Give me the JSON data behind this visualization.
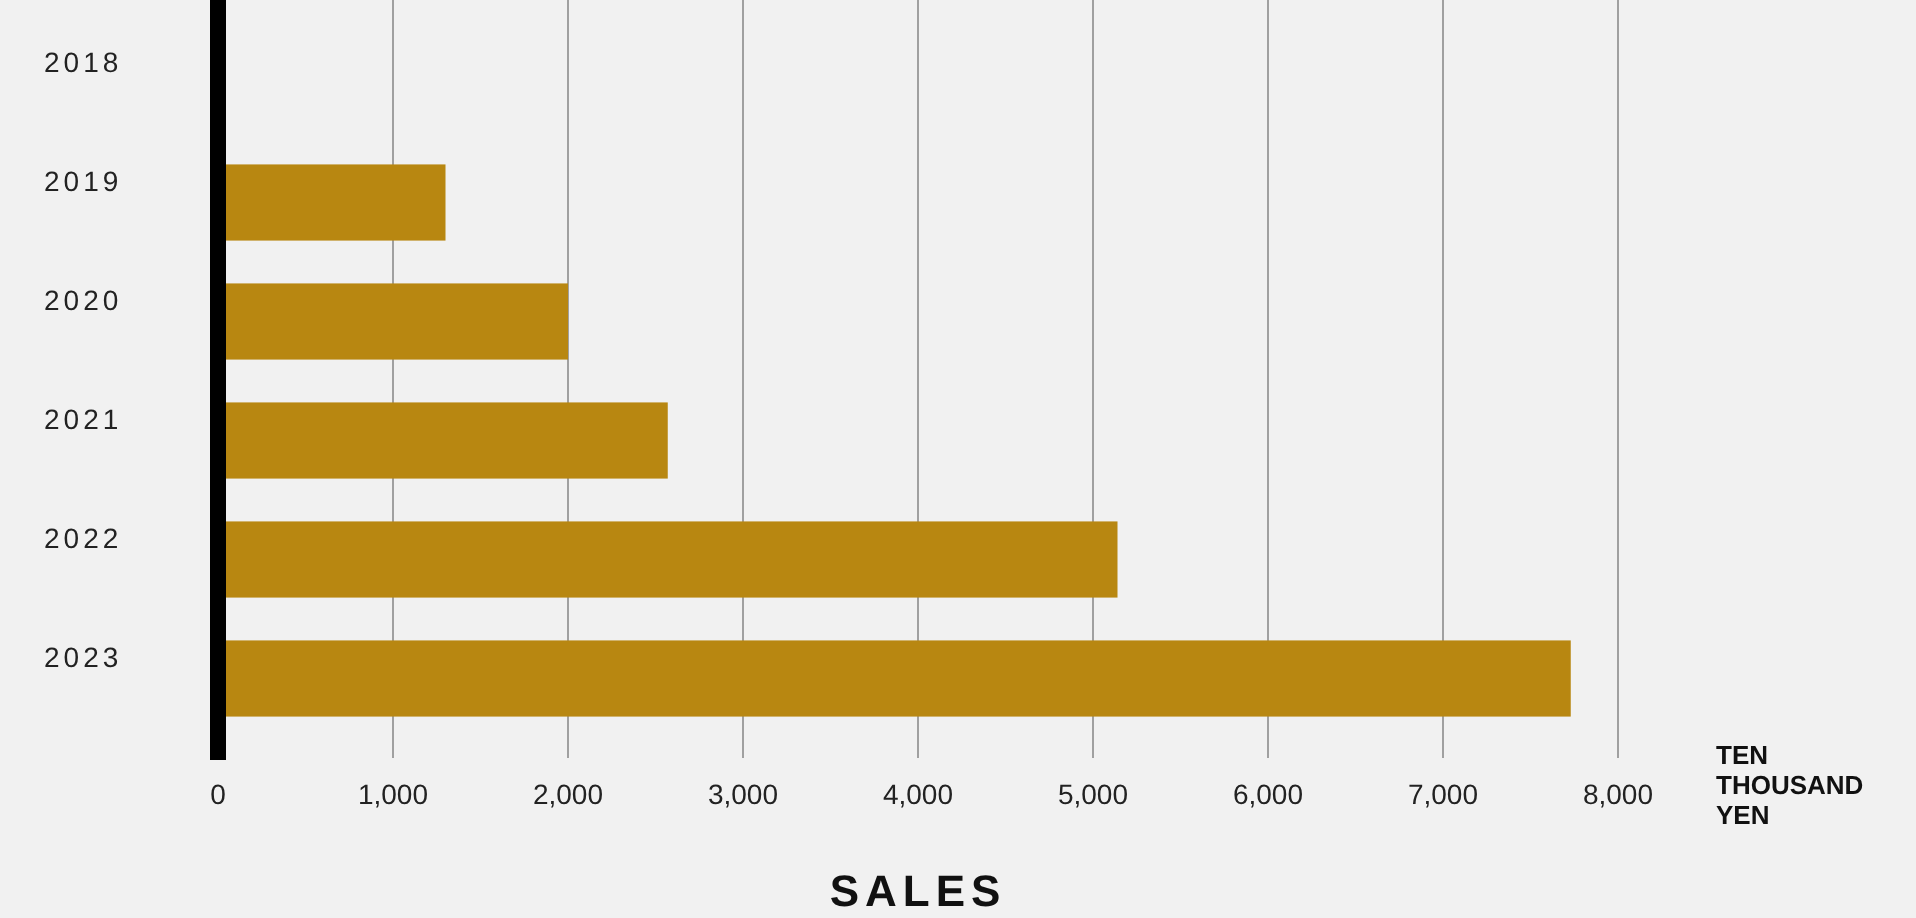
{
  "chart_data": {
    "type": "bar",
    "orientation": "horizontal",
    "xlabel": "SALES",
    "categories": [
      "2018",
      "2019",
      "2020",
      "2021",
      "2022",
      "2023"
    ],
    "values": [
      0,
      1300,
      2000,
      2570,
      5140,
      7730
    ],
    "color": "#b88711",
    "xlim": [
      0,
      8000
    ],
    "xticks": [
      {
        "value": 0,
        "label": "0"
      },
      {
        "value": 1000,
        "label": "1,000"
      },
      {
        "value": 2000,
        "label": "2,000"
      },
      {
        "value": 3000,
        "label": "3,000"
      },
      {
        "value": 4000,
        "label": "4,000"
      },
      {
        "value": 5000,
        "label": "5,000"
      },
      {
        "value": 6000,
        "label": "6,000"
      },
      {
        "value": 7000,
        "label": "7,000"
      },
      {
        "value": 8000,
        "label": "8,000"
      }
    ],
    "grid": "x",
    "annotations": [
      "TEN THOUSAND YEN"
    ]
  }
}
